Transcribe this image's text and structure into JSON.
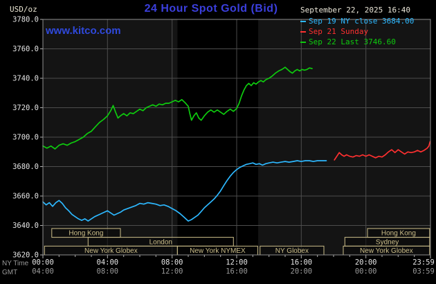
{
  "header": {
    "units": "USD/oz",
    "title": "24 Hour Spot Gold (Bid)",
    "datetime": "September 22, 2025 16:40",
    "watermark": "www.kitco.com"
  },
  "legend": {
    "items": [
      {
        "label": "Sep 19 NY close 3684.00",
        "color": "#2db8ff"
      },
      {
        "label": "Sep 21 Sunday",
        "color": "#ff3030"
      },
      {
        "label": "Sep 22 Last 3746.60",
        "color": "#0ecb0e"
      }
    ]
  },
  "colors": {
    "plot_bg": "#141414",
    "band": "#000000",
    "grid": "#4d4d4d",
    "border": "#8f8f8f",
    "tick": "#b5b5b5",
    "axis_text": "#e6e6e6",
    "gmt_text": "#9a9a9a",
    "session": "#cdbf8a"
  },
  "chart_data": {
    "type": "line",
    "title": "24 Hour Spot Gold (Bid)",
    "ylabel": "USD/oz",
    "ylim": [
      3620,
      3780
    ],
    "xlim_hours": [
      0,
      24
    ],
    "y_ticks": [
      3620,
      3640,
      3660,
      3680,
      3700,
      3720,
      3740,
      3760,
      3780
    ],
    "x_axis": {
      "ny_label": "NY Time",
      "gmt_label": "GMT",
      "tick_hours": [
        0,
        4,
        8,
        12,
        16,
        20,
        23.983
      ],
      "ny_ticks": [
        "00:00",
        "04:00",
        "08:00",
        "12:00",
        "16:00",
        "20:00",
        "23:59"
      ],
      "gmt_ticks": [
        "04:00",
        "08:00",
        "12:00",
        "16:00",
        "20:00",
        "00:00",
        "03:59"
      ]
    },
    "shaded_band_hours": [
      8.33,
      13.33
    ],
    "sessions": [
      {
        "row": 0,
        "start": 0.55,
        "end": 4.8,
        "label": "Hong Kong"
      },
      {
        "row": 0,
        "start": 20.1,
        "end": 23.95,
        "label": "Hong Kong"
      },
      {
        "row": 1,
        "start": 2.8,
        "end": 11.8,
        "label": "London"
      },
      {
        "row": 1,
        "start": 18.7,
        "end": 23.95,
        "label": "Sydney"
      },
      {
        "row": 2,
        "start": 0.1,
        "end": 8.33,
        "label": "New York Globex"
      },
      {
        "row": 2,
        "start": 8.33,
        "end": 13.3,
        "label": "New York NYMEX"
      },
      {
        "row": 2,
        "start": 13.45,
        "end": 17.4,
        "label": "NY Globex"
      },
      {
        "row": 2,
        "start": 18.6,
        "end": 23.95,
        "label": "New York Globex"
      }
    ],
    "series": [
      {
        "id": "sep19",
        "name": "Sep 19 NY close",
        "color": "#2db8ff",
        "close": 3684.0,
        "points": [
          [
            0,
            3656
          ],
          [
            0.2,
            3654
          ],
          [
            0.4,
            3655.5
          ],
          [
            0.6,
            3653
          ],
          [
            0.8,
            3655.5
          ],
          [
            1,
            3657
          ],
          [
            1.2,
            3655
          ],
          [
            1.4,
            3652
          ],
          [
            1.6,
            3650
          ],
          [
            1.8,
            3647.5
          ],
          [
            2,
            3646
          ],
          [
            2.2,
            3644.5
          ],
          [
            2.4,
            3643.5
          ],
          [
            2.6,
            3644.5
          ],
          [
            2.8,
            3643
          ],
          [
            3,
            3644.5
          ],
          [
            3.2,
            3646
          ],
          [
            3.5,
            3647.5
          ],
          [
            3.8,
            3649
          ],
          [
            4,
            3650
          ],
          [
            4.2,
            3648.5
          ],
          [
            4.4,
            3647
          ],
          [
            4.6,
            3648
          ],
          [
            4.8,
            3649
          ],
          [
            5,
            3650.5
          ],
          [
            5.25,
            3651.5
          ],
          [
            5.5,
            3652.5
          ],
          [
            5.75,
            3653.5
          ],
          [
            6,
            3655
          ],
          [
            6.25,
            3654.5
          ],
          [
            6.5,
            3655.5
          ],
          [
            6.75,
            3655
          ],
          [
            7,
            3654.5
          ],
          [
            7.25,
            3653.5
          ],
          [
            7.5,
            3654
          ],
          [
            7.75,
            3653
          ],
          [
            8,
            3651.5
          ],
          [
            8.25,
            3650
          ],
          [
            8.5,
            3648
          ],
          [
            8.75,
            3645.5
          ],
          [
            9,
            3643
          ],
          [
            9.2,
            3644
          ],
          [
            9.4,
            3645.5
          ],
          [
            9.6,
            3647
          ],
          [
            9.8,
            3649.5
          ],
          [
            10,
            3652
          ],
          [
            10.2,
            3654
          ],
          [
            10.4,
            3656
          ],
          [
            10.6,
            3658
          ],
          [
            10.8,
            3660.5
          ],
          [
            11,
            3663.5
          ],
          [
            11.2,
            3667
          ],
          [
            11.4,
            3670.5
          ],
          [
            11.6,
            3673.5
          ],
          [
            11.8,
            3676
          ],
          [
            12,
            3678
          ],
          [
            12.2,
            3679.5
          ],
          [
            12.4,
            3680.5
          ],
          [
            12.6,
            3681.5
          ],
          [
            12.8,
            3682
          ],
          [
            13,
            3682.5
          ],
          [
            13.2,
            3681.5
          ],
          [
            13.4,
            3682
          ],
          [
            13.6,
            3681
          ],
          [
            13.8,
            3682
          ],
          [
            14,
            3682.5
          ],
          [
            14.25,
            3683
          ],
          [
            14.5,
            3682.5
          ],
          [
            14.75,
            3683
          ],
          [
            15,
            3683.5
          ],
          [
            15.25,
            3683
          ],
          [
            15.5,
            3683.5
          ],
          [
            15.75,
            3684
          ],
          [
            16,
            3683.5
          ],
          [
            16.25,
            3684
          ],
          [
            16.5,
            3684
          ],
          [
            16.75,
            3683.5
          ],
          [
            17,
            3684
          ],
          [
            17.3,
            3684
          ],
          [
            17.55,
            3684
          ]
        ]
      },
      {
        "id": "sep21",
        "name": "Sep 21 Sunday",
        "color": "#ff3030",
        "points": [
          [
            18.05,
            3684.5
          ],
          [
            18.2,
            3687
          ],
          [
            18.35,
            3689.5
          ],
          [
            18.5,
            3688
          ],
          [
            18.65,
            3687
          ],
          [
            18.8,
            3688
          ],
          [
            19,
            3687
          ],
          [
            19.2,
            3686.5
          ],
          [
            19.4,
            3687.5
          ],
          [
            19.6,
            3687
          ],
          [
            19.8,
            3688
          ],
          [
            20,
            3687
          ],
          [
            20.2,
            3688
          ],
          [
            20.4,
            3687
          ],
          [
            20.6,
            3686
          ],
          [
            20.8,
            3687
          ],
          [
            21,
            3686.5
          ],
          [
            21.2,
            3688
          ],
          [
            21.4,
            3690
          ],
          [
            21.6,
            3691.5
          ],
          [
            21.8,
            3689.5
          ],
          [
            22,
            3691.5
          ],
          [
            22.2,
            3690
          ],
          [
            22.4,
            3688.5
          ],
          [
            22.6,
            3690
          ],
          [
            22.8,
            3689.5
          ],
          [
            23,
            3690
          ],
          [
            23.2,
            3691
          ],
          [
            23.4,
            3690
          ],
          [
            23.6,
            3691
          ],
          [
            23.8,
            3692.5
          ],
          [
            23.9,
            3694
          ],
          [
            23.98,
            3697
          ]
        ]
      },
      {
        "id": "sep22",
        "name": "Sep 22 Last",
        "color": "#0ecb0e",
        "last": 3746.6,
        "points": [
          [
            0,
            3694
          ],
          [
            0.25,
            3692.5
          ],
          [
            0.5,
            3694
          ],
          [
            0.75,
            3692
          ],
          [
            1,
            3694.5
          ],
          [
            1.25,
            3695.5
          ],
          [
            1.5,
            3694.5
          ],
          [
            1.75,
            3696
          ],
          [
            2,
            3697
          ],
          [
            2.25,
            3698.5
          ],
          [
            2.5,
            3700
          ],
          [
            2.75,
            3702.5
          ],
          [
            3,
            3704
          ],
          [
            3.25,
            3707
          ],
          [
            3.5,
            3710
          ],
          [
            3.75,
            3712
          ],
          [
            4,
            3714.5
          ],
          [
            4.2,
            3718
          ],
          [
            4.35,
            3721.5
          ],
          [
            4.5,
            3717
          ],
          [
            4.65,
            3713
          ],
          [
            4.8,
            3714.5
          ],
          [
            5,
            3716
          ],
          [
            5.2,
            3714.5
          ],
          [
            5.4,
            3716.5
          ],
          [
            5.6,
            3716
          ],
          [
            5.8,
            3717.5
          ],
          [
            6,
            3719
          ],
          [
            6.2,
            3718
          ],
          [
            6.4,
            3720
          ],
          [
            6.6,
            3721
          ],
          [
            6.8,
            3722
          ],
          [
            7,
            3721
          ],
          [
            7.2,
            3722.5
          ],
          [
            7.4,
            3722
          ],
          [
            7.6,
            3723
          ],
          [
            7.8,
            3723
          ],
          [
            8,
            3724
          ],
          [
            8.2,
            3725
          ],
          [
            8.4,
            3724
          ],
          [
            8.6,
            3725.5
          ],
          [
            8.8,
            3723.5
          ],
          [
            9,
            3721
          ],
          [
            9.1,
            3716
          ],
          [
            9.2,
            3711.5
          ],
          [
            9.35,
            3714.5
          ],
          [
            9.5,
            3716.5
          ],
          [
            9.65,
            3713
          ],
          [
            9.8,
            3711.5
          ],
          [
            10,
            3714.5
          ],
          [
            10.2,
            3717
          ],
          [
            10.4,
            3718.5
          ],
          [
            10.6,
            3717
          ],
          [
            10.8,
            3718.5
          ],
          [
            11,
            3717
          ],
          [
            11.2,
            3715.5
          ],
          [
            11.4,
            3717.5
          ],
          [
            11.6,
            3719
          ],
          [
            11.8,
            3717.5
          ],
          [
            12,
            3719.5
          ],
          [
            12.15,
            3723
          ],
          [
            12.3,
            3728
          ],
          [
            12.45,
            3732
          ],
          [
            12.6,
            3735
          ],
          [
            12.75,
            3736.5
          ],
          [
            12.9,
            3735
          ],
          [
            13.05,
            3737
          ],
          [
            13.2,
            3736
          ],
          [
            13.35,
            3737.5
          ],
          [
            13.5,
            3738.5
          ],
          [
            13.65,
            3737.5
          ],
          [
            13.8,
            3739
          ],
          [
            14,
            3740
          ],
          [
            14.2,
            3741.5
          ],
          [
            14.4,
            3743.5
          ],
          [
            14.6,
            3745
          ],
          [
            14.8,
            3746
          ],
          [
            15,
            3747.5
          ],
          [
            15.15,
            3746
          ],
          [
            15.3,
            3744.5
          ],
          [
            15.45,
            3743.5
          ],
          [
            15.6,
            3745
          ],
          [
            15.75,
            3746
          ],
          [
            15.9,
            3745
          ],
          [
            16.05,
            3746
          ],
          [
            16.2,
            3745.5
          ],
          [
            16.35,
            3746
          ],
          [
            16.5,
            3747
          ],
          [
            16.67,
            3746.6
          ]
        ]
      }
    ]
  }
}
